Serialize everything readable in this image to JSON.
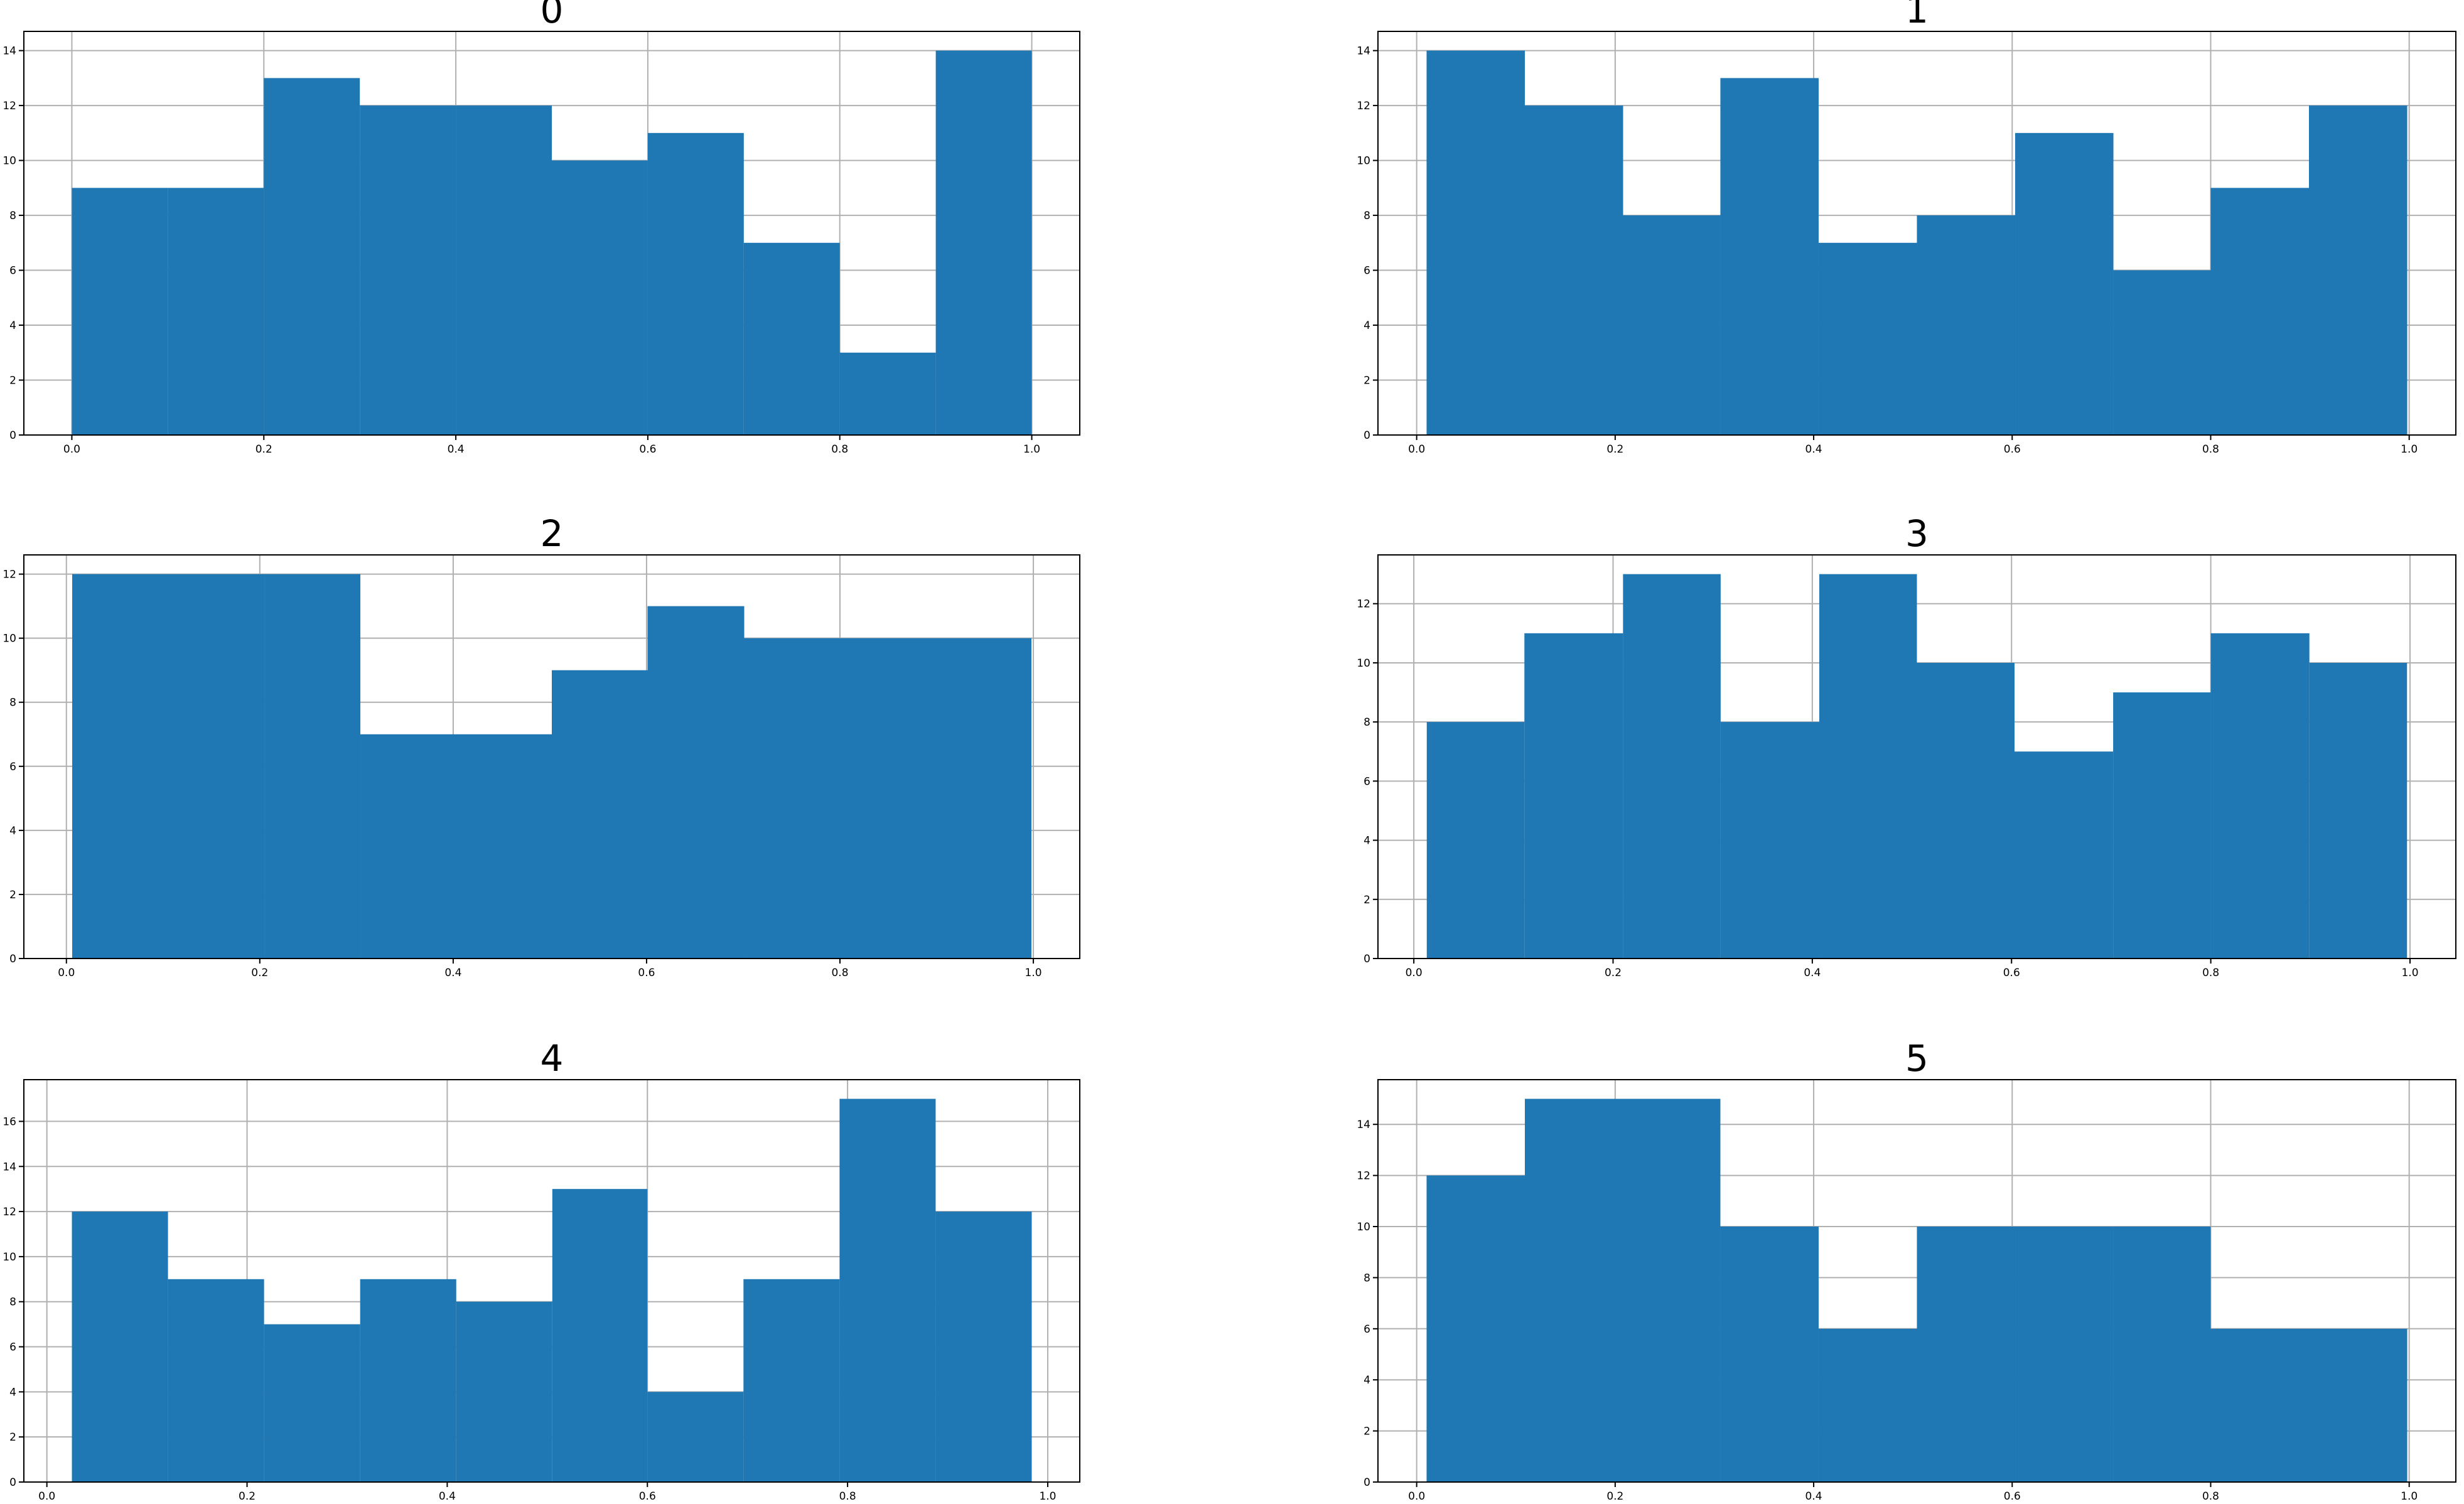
{
  "chart_data": [
    {
      "type": "histogram",
      "title": "0",
      "color": "#1f77b4",
      "grid": true,
      "bins": [
        0.0,
        0.1,
        0.2,
        0.3,
        0.4,
        0.5,
        0.6,
        0.7,
        0.8,
        0.9,
        1.0
      ],
      "values": [
        9,
        9,
        13,
        12,
        12,
        10,
        11,
        7,
        3,
        14
      ],
      "xlim": [
        -0.05,
        1.05
      ],
      "ylim": [
        0,
        14.7
      ],
      "xticks": [
        {
          "value": 0,
          "label": "0.0"
        },
        0.2,
        0.4,
        0.6,
        0.8,
        {
          "value": 1,
          "label": "1.0"
        }
      ],
      "yticks": [
        0,
        2,
        4,
        6,
        8,
        10,
        12,
        14
      ]
    },
    {
      "type": "histogram",
      "title": "1",
      "color": "#1f77b4",
      "grid": true,
      "bins": [
        0.01,
        0.109,
        0.208,
        0.306,
        0.405,
        0.504,
        0.603,
        0.702,
        0.8,
        0.899,
        0.998
      ],
      "values": [
        14,
        12,
        8,
        13,
        7,
        8,
        11,
        6,
        9,
        12
      ],
      "xlim": [
        -0.039,
        1.047
      ],
      "ylim": [
        0,
        14.7
      ],
      "xticks": [
        {
          "value": 0,
          "label": "0.0"
        },
        0.2,
        0.4,
        0.6,
        0.8,
        {
          "value": 1,
          "label": "1.0"
        }
      ],
      "yticks": [
        0,
        2,
        4,
        6,
        8,
        10,
        12,
        14
      ]
    },
    {
      "type": "histogram",
      "title": "2",
      "color": "#1f77b4",
      "grid": true,
      "bins": [
        0.006,
        0.105,
        0.205,
        0.304,
        0.403,
        0.502,
        0.601,
        0.701,
        0.8,
        0.899,
        0.998
      ],
      "values": [
        12,
        12,
        12,
        7,
        7,
        9,
        11,
        10,
        10,
        10
      ],
      "xlim": [
        -0.044,
        1.048
      ],
      "ylim": [
        0,
        12.6
      ],
      "xticks": [
        {
          "value": 0,
          "label": "0.0"
        },
        0.2,
        0.4,
        0.6,
        0.8,
        {
          "value": 1,
          "label": "1.0"
        }
      ],
      "yticks": [
        0,
        2,
        4,
        6,
        8,
        10,
        12
      ]
    },
    {
      "type": "histogram",
      "title": "3",
      "color": "#1f77b4",
      "grid": true,
      "bins": [
        0.013,
        0.111,
        0.21,
        0.308,
        0.407,
        0.505,
        0.603,
        0.702,
        0.8,
        0.899,
        0.997
      ],
      "values": [
        8,
        11,
        13,
        8,
        13,
        10,
        7,
        9,
        11,
        10
      ],
      "xlim": [
        -0.036,
        1.046
      ],
      "ylim": [
        0,
        13.65
      ],
      "xticks": [
        {
          "value": 0,
          "label": "0.0"
        },
        0.2,
        0.4,
        0.6,
        0.8,
        {
          "value": 1,
          "label": "1.0"
        }
      ],
      "yticks": [
        0,
        2,
        4,
        6,
        8,
        10,
        12
      ]
    },
    {
      "type": "histogram",
      "title": "4",
      "color": "#1f77b4",
      "grid": true,
      "bins": [
        0.025,
        0.121,
        0.217,
        0.313,
        0.409,
        0.505,
        0.6,
        0.696,
        0.792,
        0.888,
        0.984
      ],
      "values": [
        12,
        9,
        7,
        9,
        8,
        13,
        4,
        9,
        17,
        12
      ],
      "xlim": [
        -0.023,
        1.032
      ],
      "ylim": [
        0,
        17.85
      ],
      "xticks": [
        {
          "value": 0,
          "label": "0.0"
        },
        0.2,
        0.4,
        0.6,
        0.8,
        {
          "value": 1,
          "label": "1.0"
        }
      ],
      "yticks": [
        0,
        2,
        4,
        6,
        8,
        10,
        12,
        14,
        16
      ]
    },
    {
      "type": "histogram",
      "title": "5",
      "color": "#1f77b4",
      "grid": true,
      "bins": [
        0.01,
        0.109,
        0.208,
        0.306,
        0.405,
        0.504,
        0.603,
        0.702,
        0.8,
        0.899,
        0.998
      ],
      "values": [
        12,
        15,
        15,
        10,
        6,
        10,
        10,
        10,
        6,
        6
      ],
      "xlim": [
        -0.039,
        1.047
      ],
      "ylim": [
        0,
        15.75
      ],
      "xticks": [
        {
          "value": 0,
          "label": "0.0"
        },
        0.2,
        0.4,
        0.6,
        0.8,
        {
          "value": 1,
          "label": "1.0"
        }
      ],
      "yticks": [
        0,
        2,
        4,
        6,
        8,
        10,
        12,
        14
      ]
    }
  ]
}
